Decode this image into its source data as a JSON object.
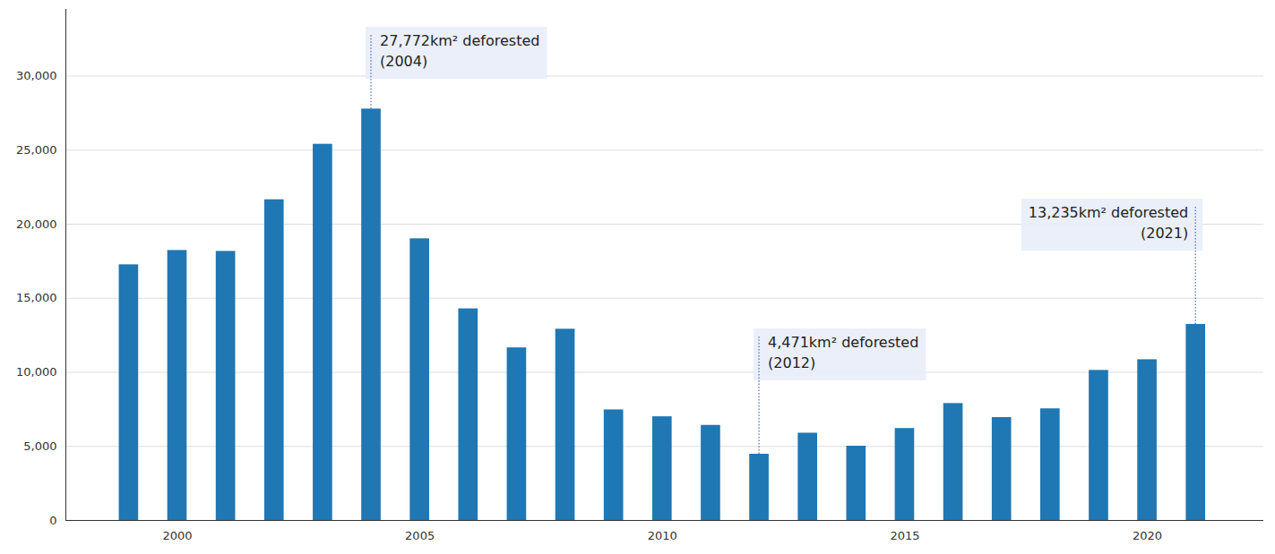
{
  "chart_data": {
    "type": "bar",
    "x": [
      1999,
      2000,
      2001,
      2002,
      2003,
      2004,
      2005,
      2006,
      2007,
      2008,
      2009,
      2010,
      2011,
      2012,
      2013,
      2014,
      2015,
      2016,
      2017,
      2018,
      2019,
      2020,
      2021
    ],
    "values": [
      17259,
      18226,
      18165,
      21650,
      25396,
      27772,
      19014,
      14286,
      11651,
      12911,
      7464,
      7000,
      6418,
      4471,
      5891,
      5012,
      6207,
      7893,
      6947,
      7536,
      10129,
      10851,
      13235
    ],
    "color": "#1f77b4",
    "xlim": [
      1997.7,
      2022.4
    ],
    "xticks": [
      2000,
      2005,
      2010,
      2015,
      2020
    ],
    "ylim": [
      0,
      34500
    ],
    "yticks": [
      0,
      {
        "value": 5000,
        "label": "5,000"
      },
      {
        "value": 10000,
        "label": "10,000"
      },
      {
        "value": 15000,
        "label": "15,000"
      },
      {
        "value": 20000,
        "label": "20,000"
      },
      {
        "value": 25000,
        "label": "25,000"
      },
      {
        "value": 30000,
        "label": "30,000"
      }
    ],
    "grid": true,
    "annotations": [
      {
        "x": 2004,
        "text": [
          "27,772km² deforested",
          "(2004)"
        ]
      },
      {
        "x": 2012,
        "text": [
          "4,471km² deforested",
          "(2012)"
        ]
      },
      {
        "x": 2021,
        "text": [
          "13,235km² deforested",
          "(2021)"
        ]
      }
    ]
  }
}
